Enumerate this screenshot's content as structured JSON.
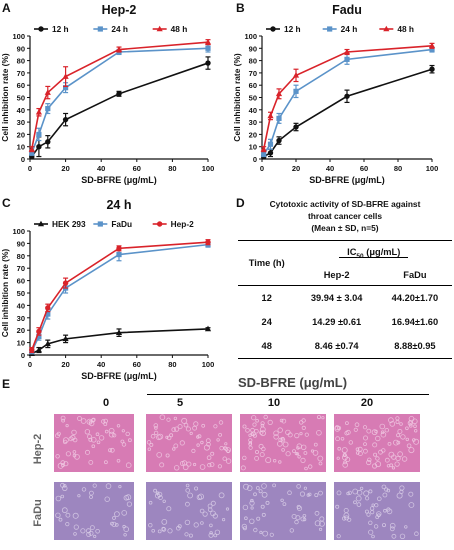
{
  "colors": {
    "black": "#111111",
    "blue": "#5b93c9",
    "red": "#d9232a"
  },
  "chart_data": [
    {
      "id": "A",
      "type": "line",
      "title": "Hep-2",
      "xlabel": "SD-BFRE (μg/mL)",
      "ylabel": "Cell inhibition rate (%)",
      "xlim": [
        0,
        100
      ],
      "ylim": [
        0,
        100
      ],
      "xticks": [
        0,
        20,
        40,
        60,
        80,
        100
      ],
      "yticks": [
        0,
        10,
        20,
        30,
        40,
        50,
        60,
        70,
        80,
        90,
        100
      ],
      "x": [
        1,
        5,
        10,
        20,
        50,
        100
      ],
      "legend_position": "top",
      "series": [
        {
          "name": "12 h",
          "color": "#111111",
          "marker": "circle",
          "values": [
            2,
            10,
            14,
            32,
            53,
            78
          ],
          "errors": [
            1,
            8,
            5,
            5,
            2,
            5
          ]
        },
        {
          "name": "24 h",
          "color": "#5b93c9",
          "marker": "square",
          "values": [
            5,
            20,
            41,
            58,
            87,
            90
          ],
          "errors": [
            2,
            5,
            4,
            4,
            2,
            3
          ]
        },
        {
          "name": "48 h",
          "color": "#d9232a",
          "marker": "triangle",
          "values": [
            8,
            38,
            54,
            67,
            89,
            95
          ],
          "errors": [
            2,
            3,
            5,
            8,
            2,
            2
          ]
        }
      ]
    },
    {
      "id": "B",
      "type": "line",
      "title": "Fadu",
      "xlabel": "SD-BFRE (μg/mL)",
      "ylabel": "Cell inhibition rate (%)",
      "xlim": [
        0,
        100
      ],
      "ylim": [
        0,
        100
      ],
      "xticks": [
        0,
        20,
        40,
        60,
        80,
        100
      ],
      "yticks": [
        0,
        10,
        20,
        30,
        40,
        50,
        60,
        70,
        80,
        90,
        100
      ],
      "x": [
        1,
        5,
        10,
        20,
        50,
        100
      ],
      "legend_position": "top",
      "series": [
        {
          "name": "12 h",
          "color": "#111111",
          "marker": "circle",
          "values": [
            2,
            5,
            15,
            26,
            51,
            73
          ],
          "errors": [
            1,
            3,
            3,
            3,
            5,
            3
          ]
        },
        {
          "name": "24 h",
          "color": "#5b93c9",
          "marker": "square",
          "values": [
            4,
            12,
            33,
            55,
            81,
            89
          ],
          "errors": [
            2,
            4,
            4,
            5,
            4,
            2
          ]
        },
        {
          "name": "48 h",
          "color": "#d9232a",
          "marker": "triangle",
          "values": [
            8,
            35,
            53,
            68,
            87,
            92
          ],
          "errors": [
            2,
            3,
            4,
            5,
            2,
            2
          ]
        }
      ]
    },
    {
      "id": "C",
      "type": "line",
      "title": "24 h",
      "xlabel": "SD-BFRE (μg/mL)",
      "ylabel": "Cell inhibition rate (%)",
      "xlim": [
        0,
        100
      ],
      "ylim": [
        0,
        100
      ],
      "xticks": [
        0,
        20,
        40,
        60,
        80,
        100
      ],
      "yticks": [
        0,
        10,
        20,
        30,
        40,
        50,
        60,
        70,
        80,
        90,
        100
      ],
      "x": [
        1,
        5,
        10,
        20,
        50,
        100
      ],
      "legend_position": "top",
      "series": [
        {
          "name": "HEK 293",
          "color": "#111111",
          "marker": "triangle",
          "values": [
            1,
            4,
            9,
            13,
            18,
            21
          ],
          "errors": [
            1,
            2,
            3,
            3,
            3,
            1
          ]
        },
        {
          "name": "FaDu",
          "color": "#5b93c9",
          "marker": "square",
          "values": [
            3,
            15,
            33,
            54,
            81,
            89
          ],
          "errors": [
            2,
            3,
            4,
            4,
            5,
            2
          ]
        },
        {
          "name": "Hep-2",
          "color": "#d9232a",
          "marker": "circle",
          "values": [
            4,
            19,
            38,
            58,
            86,
            91
          ],
          "errors": [
            2,
            3,
            3,
            4,
            2,
            2
          ]
        }
      ]
    }
  ],
  "panels": {
    "a": "A",
    "b": "B",
    "c": "C",
    "d": "D",
    "e": "E"
  },
  "table": {
    "caption_line1": "Cytotoxic activity of SD-BFRE against",
    "caption_line2": "throat cancer cells",
    "caption_line3": "(Mean ± SD, n=5)",
    "col_time": "Time (h)",
    "col_ic50_prefix": "IC",
    "col_ic50_sub": "50",
    "col_ic50_suffix": " (μg/mL)",
    "col_hep2": "Hep-2",
    "col_fadu": "FaDu",
    "rows": [
      {
        "time": "12",
        "hep2": "39.94 ± 3.04",
        "fadu": "44.20±1.70"
      },
      {
        "time": "24",
        "hep2": "14.29 ±0.61",
        "fadu": "16.94±1.60"
      },
      {
        "time": "48",
        "hep2": "8.46 ±0.74",
        "fadu": "8.88±0.95"
      }
    ]
  },
  "micrographs": {
    "title": "SD-BFRE (μg/mL)",
    "concentrations": [
      "0",
      "5",
      "10",
      "20"
    ],
    "rows": [
      "Hep-2",
      "FaDu"
    ],
    "hep2_color": "#d77bb4",
    "fadu_color": "#9d86bf"
  }
}
